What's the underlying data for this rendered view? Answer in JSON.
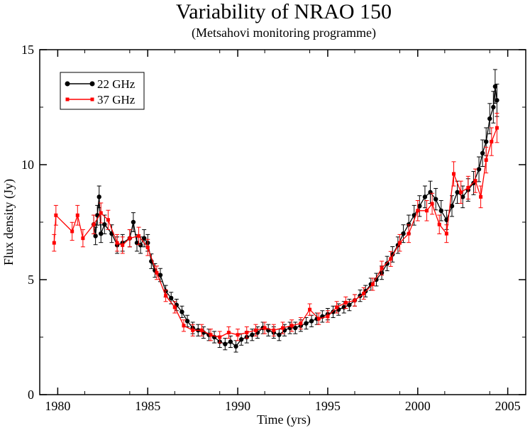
{
  "chart_data": {
    "type": "line",
    "title": "Variability of NRAO 150",
    "subtitle": "(Metsahovi monitoring programme)",
    "xlabel": "Time (yrs)",
    "ylabel": "Flux density (Jy)",
    "xlim": [
      1979,
      2006
    ],
    "ylim": [
      0,
      15
    ],
    "xticks": [
      1980,
      1985,
      1990,
      1995,
      2000,
      2005
    ],
    "yticks": [
      0,
      5,
      10,
      15
    ],
    "legend_position": "top-left",
    "series": [
      {
        "name": "22 GHz",
        "color": "#000000",
        "marker": "circle",
        "x": [
          1982.0,
          1982.1,
          1982.2,
          1982.3,
          1982.4,
          1982.6,
          1983.0,
          1983.3,
          1983.6,
          1984.0,
          1984.2,
          1984.4,
          1984.6,
          1984.8,
          1985.0,
          1985.2,
          1985.4,
          1985.7,
          1986.0,
          1986.3,
          1986.6,
          1986.9,
          1987.2,
          1987.5,
          1987.8,
          1988.1,
          1988.4,
          1988.7,
          1989.0,
          1989.3,
          1989.6,
          1989.9,
          1990.2,
          1990.5,
          1990.8,
          1991.1,
          1991.4,
          1991.7,
          1992.0,
          1992.3,
          1992.6,
          1992.9,
          1993.2,
          1993.5,
          1993.8,
          1994.1,
          1994.4,
          1994.7,
          1995.0,
          1995.3,
          1995.6,
          1995.9,
          1996.2,
          1996.5,
          1996.8,
          1997.1,
          1997.4,
          1997.7,
          1998.0,
          1998.3,
          1998.6,
          1998.9,
          1999.2,
          1999.5,
          1999.8,
          2000.1,
          2000.4,
          2000.7,
          2001.0,
          2001.3,
          2001.6,
          2001.9,
          2002.2,
          2002.5,
          2002.8,
          2003.1,
          2003.4,
          2003.6,
          2003.8,
          2004.0,
          2004.2,
          2004.3,
          2004.4
        ],
        "y": [
          7.4,
          6.9,
          7.8,
          8.6,
          7.0,
          7.4,
          7.0,
          6.5,
          6.6,
          6.8,
          7.5,
          6.6,
          6.5,
          6.8,
          6.6,
          5.8,
          5.4,
          5.2,
          4.5,
          4.2,
          3.9,
          3.6,
          3.2,
          2.9,
          2.8,
          2.7,
          2.6,
          2.5,
          2.3,
          2.2,
          2.3,
          2.1,
          2.4,
          2.5,
          2.6,
          2.7,
          2.9,
          2.8,
          2.7,
          2.6,
          2.8,
          2.9,
          2.9,
          3.0,
          3.1,
          3.2,
          3.3,
          3.4,
          3.5,
          3.6,
          3.7,
          3.8,
          3.9,
          4.1,
          4.3,
          4.5,
          4.8,
          5.0,
          5.3,
          5.7,
          6.1,
          6.5,
          7.0,
          7.4,
          7.8,
          8.2,
          8.6,
          8.8,
          8.5,
          8.0,
          7.6,
          8.2,
          8.8,
          8.6,
          8.9,
          9.2,
          9.8,
          10.5,
          11.0,
          12.0,
          12.5,
          13.4,
          12.8
        ],
        "x_error": [],
        "note": "error bars shown"
      },
      {
        "name": "37 GHz",
        "color": "#ff0000",
        "marker": "square",
        "x": [
          1979.8,
          1979.9,
          1980.8,
          1981.1,
          1981.4,
          1982.0,
          1982.4,
          1982.8,
          1983.3,
          1983.6,
          1984.0,
          1984.5,
          1985.0,
          1985.5,
          1986.0,
          1986.5,
          1987.0,
          1987.5,
          1988.0,
          1988.5,
          1989.0,
          1989.5,
          1990.0,
          1990.5,
          1991.0,
          1991.5,
          1992.0,
          1992.5,
          1993.0,
          1993.5,
          1994.0,
          1994.5,
          1995.0,
          1995.5,
          1996.0,
          1996.5,
          1997.0,
          1997.5,
          1998.0,
          1998.5,
          1999.0,
          1999.5,
          2000.0,
          2000.5,
          2000.8,
          2001.2,
          2001.6,
          2002.0,
          2002.4,
          2002.8,
          2003.2,
          2003.5,
          2003.8,
          2004.1,
          2004.4
        ],
        "y": [
          6.6,
          7.8,
          7.1,
          7.8,
          6.8,
          7.4,
          7.9,
          7.6,
          6.6,
          6.5,
          6.8,
          6.9,
          6.4,
          5.3,
          4.3,
          3.8,
          3.0,
          2.8,
          2.8,
          2.6,
          2.5,
          2.7,
          2.6,
          2.7,
          2.8,
          2.9,
          2.8,
          2.9,
          3.0,
          3.1,
          3.7,
          3.3,
          3.4,
          3.8,
          4.0,
          4.1,
          4.4,
          4.8,
          5.5,
          5.9,
          6.6,
          7.0,
          8.0,
          8.0,
          8.3,
          7.4,
          7.0,
          9.6,
          8.8,
          9.0,
          9.3,
          8.6,
          10.2,
          11.0,
          11.6
        ]
      }
    ]
  }
}
